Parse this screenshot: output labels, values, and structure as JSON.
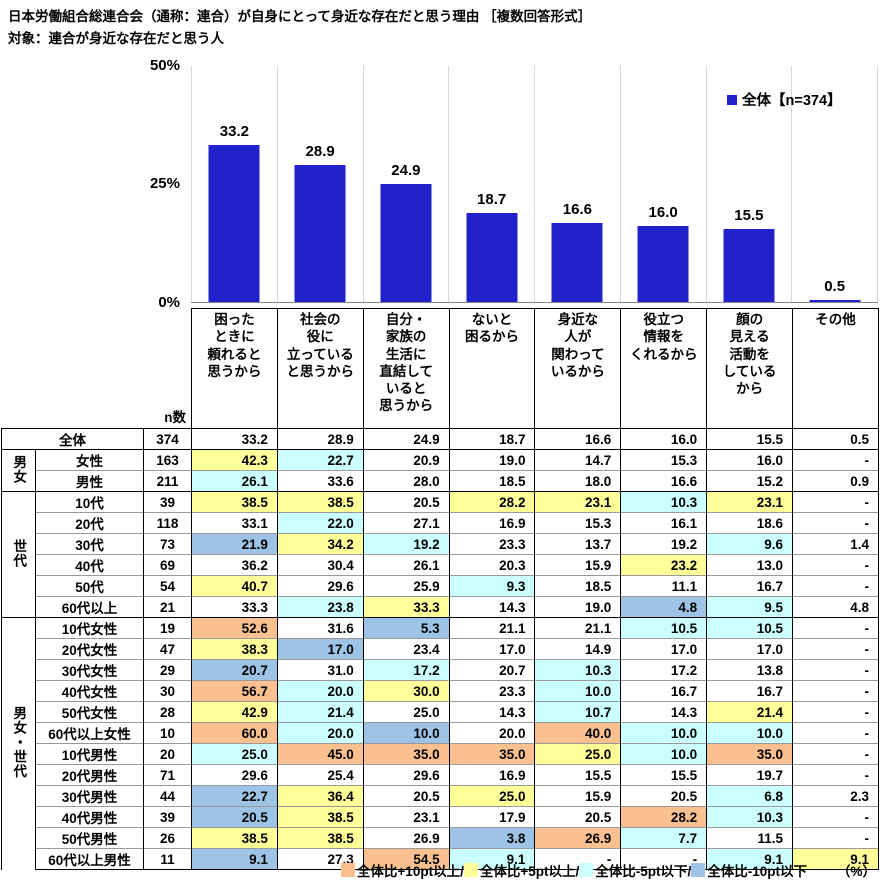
{
  "title": {
    "line1": "日本労働組合総連合会（通称：連合）が自身にとって身近な存在だと思う理由 ［複数回答形式］",
    "line2": "対象：連合が身近な存在だと思う人"
  },
  "legend": {
    "label": "全体【n=374】"
  },
  "chart_data": {
    "type": "bar",
    "categories": [
      "困ったときに頼れると思うから",
      "社会の役に立っていると思うから",
      "自分・家族の生活に直結していると思うから",
      "ないと困るから",
      "身近な人が関わっているから",
      "役立つ情報をくれるから",
      "顔の見える活動をしているから",
      "その他"
    ],
    "values": [
      33.2,
      28.9,
      24.9,
      18.7,
      16.6,
      16.0,
      15.5,
      0.5
    ],
    "title": "日本労働組合総連合会（通称：連合）が自身にとって身近な存在だと思う理由［複数回答形式］",
    "xlabel": "",
    "ylabel": "%",
    "ylim": [
      0,
      50
    ],
    "yticks": [
      "50%",
      "25%",
      "0%"
    ],
    "legend": "全体【n=374】",
    "legend_position": "top-right",
    "grid": "vertical-only",
    "bar_color": "#2222CC"
  },
  "colors": {
    "bar": "#2222CC",
    "hl": {
      "o": "#FAC090",
      "y": "#FFFF99",
      "c": "#CCFFFF",
      "b": "#9DC3E6"
    }
  },
  "table": {
    "n_label": "n数",
    "columns": [
      "困った\nときに\n頼れると\n思うから",
      "社会の\n役に\n立っている\nと思うから",
      "自分・\n家族の\n生活に\n直結して\nいると\n思うから",
      "ないと\n困るから",
      "身近な\n人が\n関わって\nいるから",
      "役立つ\n情報を\nくれるから",
      "顔の\n見える\n活動を\nしている\nから",
      "その他"
    ],
    "groups": [
      {
        "label": "男女",
        "start": 1,
        "span": 2
      },
      {
        "label": "世代",
        "start": 3,
        "span": 6
      },
      {
        "label": "男女・世代",
        "start": 9,
        "span": 12
      }
    ],
    "rows": [
      {
        "label": "全体",
        "n": "374",
        "values": [
          "33.2",
          "28.9",
          "24.9",
          "18.7",
          "16.6",
          "16.0",
          "15.5",
          "0.5"
        ],
        "hl": [
          "",
          "",
          "",
          "",
          "",
          "",
          "",
          ""
        ]
      },
      {
        "label": "女性",
        "n": "163",
        "values": [
          "42.3",
          "22.7",
          "20.9",
          "19.0",
          "14.7",
          "15.3",
          "16.0",
          "-"
        ],
        "hl": [
          "y",
          "c",
          "",
          "",
          "",
          "",
          "",
          ""
        ]
      },
      {
        "label": "男性",
        "n": "211",
        "values": [
          "26.1",
          "33.6",
          "28.0",
          "18.5",
          "18.0",
          "16.6",
          "15.2",
          "0.9"
        ],
        "hl": [
          "c",
          "",
          "",
          "",
          "",
          "",
          "",
          ""
        ]
      },
      {
        "label": "10代",
        "n": "39",
        "values": [
          "38.5",
          "38.5",
          "20.5",
          "28.2",
          "23.1",
          "10.3",
          "23.1",
          "-"
        ],
        "hl": [
          "y",
          "y",
          "",
          "y",
          "y",
          "c",
          "y",
          ""
        ]
      },
      {
        "label": "20代",
        "n": "118",
        "values": [
          "33.1",
          "22.0",
          "27.1",
          "16.9",
          "15.3",
          "16.1",
          "18.6",
          "-"
        ],
        "hl": [
          "",
          "c",
          "",
          "",
          "",
          "",
          "",
          ""
        ]
      },
      {
        "label": "30代",
        "n": "73",
        "values": [
          "21.9",
          "34.2",
          "19.2",
          "23.3",
          "13.7",
          "19.2",
          "9.6",
          "1.4"
        ],
        "hl": [
          "b",
          "y",
          "c",
          "",
          "",
          "",
          "c",
          ""
        ]
      },
      {
        "label": "40代",
        "n": "69",
        "values": [
          "36.2",
          "30.4",
          "26.1",
          "20.3",
          "15.9",
          "23.2",
          "13.0",
          "-"
        ],
        "hl": [
          "",
          "",
          "",
          "",
          "",
          "y",
          "",
          ""
        ]
      },
      {
        "label": "50代",
        "n": "54",
        "values": [
          "40.7",
          "29.6",
          "25.9",
          "9.3",
          "18.5",
          "11.1",
          "16.7",
          "-"
        ],
        "hl": [
          "y",
          "",
          "",
          "c",
          "",
          "",
          "",
          ""
        ]
      },
      {
        "label": "60代以上",
        "n": "21",
        "values": [
          "33.3",
          "23.8",
          "33.3",
          "14.3",
          "19.0",
          "4.8",
          "9.5",
          "4.8"
        ],
        "hl": [
          "",
          "c",
          "y",
          "",
          "",
          "b",
          "c",
          ""
        ]
      },
      {
        "label": "10代女性",
        "n": "19",
        "values": [
          "52.6",
          "31.6",
          "5.3",
          "21.1",
          "21.1",
          "10.5",
          "10.5",
          "-"
        ],
        "hl": [
          "o",
          "",
          "b",
          "",
          "",
          "c",
          "c",
          ""
        ]
      },
      {
        "label": "20代女性",
        "n": "47",
        "values": [
          "38.3",
          "17.0",
          "23.4",
          "17.0",
          "14.9",
          "17.0",
          "17.0",
          "-"
        ],
        "hl": [
          "y",
          "b",
          "",
          "",
          "",
          "",
          "",
          ""
        ]
      },
      {
        "label": "30代女性",
        "n": "29",
        "values": [
          "20.7",
          "31.0",
          "17.2",
          "20.7",
          "10.3",
          "17.2",
          "13.8",
          "-"
        ],
        "hl": [
          "b",
          "",
          "c",
          "",
          "c",
          "",
          "",
          ""
        ]
      },
      {
        "label": "40代女性",
        "n": "30",
        "values": [
          "56.7",
          "20.0",
          "30.0",
          "23.3",
          "10.0",
          "16.7",
          "16.7",
          "-"
        ],
        "hl": [
          "o",
          "c",
          "y",
          "",
          "c",
          "",
          "",
          ""
        ]
      },
      {
        "label": "50代女性",
        "n": "28",
        "values": [
          "42.9",
          "21.4",
          "25.0",
          "14.3",
          "10.7",
          "14.3",
          "21.4",
          "-"
        ],
        "hl": [
          "y",
          "c",
          "",
          "",
          "c",
          "",
          "y",
          ""
        ]
      },
      {
        "label": "60代以上女性",
        "n": "10",
        "values": [
          "60.0",
          "20.0",
          "10.0",
          "20.0",
          "40.0",
          "10.0",
          "10.0",
          "-"
        ],
        "hl": [
          "o",
          "c",
          "b",
          "",
          "o",
          "c",
          "c",
          ""
        ]
      },
      {
        "label": "10代男性",
        "n": "20",
        "values": [
          "25.0",
          "45.0",
          "35.0",
          "35.0",
          "25.0",
          "10.0",
          "35.0",
          "-"
        ],
        "hl": [
          "c",
          "o",
          "o",
          "o",
          "y",
          "c",
          "o",
          ""
        ]
      },
      {
        "label": "20代男性",
        "n": "71",
        "values": [
          "29.6",
          "25.4",
          "29.6",
          "16.9",
          "15.5",
          "15.5",
          "19.7",
          "-"
        ],
        "hl": [
          "",
          "",
          "",
          "",
          "",
          "",
          "",
          ""
        ]
      },
      {
        "label": "30代男性",
        "n": "44",
        "values": [
          "22.7",
          "36.4",
          "20.5",
          "25.0",
          "15.9",
          "20.5",
          "6.8",
          "2.3"
        ],
        "hl": [
          "b",
          "y",
          "",
          "y",
          "",
          "",
          "c",
          ""
        ]
      },
      {
        "label": "40代男性",
        "n": "39",
        "values": [
          "20.5",
          "38.5",
          "23.1",
          "17.9",
          "20.5",
          "28.2",
          "10.3",
          "-"
        ],
        "hl": [
          "b",
          "y",
          "",
          "",
          "",
          "o",
          "c",
          ""
        ]
      },
      {
        "label": "50代男性",
        "n": "26",
        "values": [
          "38.5",
          "38.5",
          "26.9",
          "3.8",
          "26.9",
          "7.7",
          "11.5",
          "-"
        ],
        "hl": [
          "y",
          "y",
          "",
          "b",
          "o",
          "c",
          "",
          ""
        ]
      },
      {
        "label": "60代以上男性",
        "n": "11",
        "values": [
          "9.1",
          "27.3",
          "54.5",
          "9.1",
          "-",
          "-",
          "9.1",
          "9.1"
        ],
        "hl": [
          "b",
          "",
          "o",
          "c",
          "",
          "",
          "c",
          "y"
        ]
      }
    ]
  },
  "footer": {
    "items": [
      {
        "key": "o",
        "label": "全体比+10pt以上/"
      },
      {
        "key": "y",
        "label": "全体比+5pt以上/"
      },
      {
        "key": "c",
        "label": "全体比-5pt以下/"
      },
      {
        "key": "b",
        "label": "全体比-10pt以下"
      }
    ],
    "percent": "（%）"
  }
}
